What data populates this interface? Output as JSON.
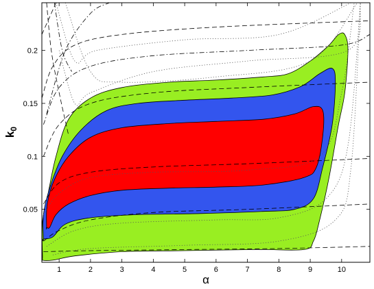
{
  "chart_data": {
    "type": "contour",
    "xlabel": "α",
    "ylabel_main": "k",
    "ylabel_sub": "0",
    "xlim": [
      0.45,
      10.9
    ],
    "ylim": [
      0.0,
      0.245
    ],
    "xticks": [
      1,
      2,
      3,
      4,
      5,
      6,
      7,
      8,
      9,
      10
    ],
    "yticks": [
      0.05,
      0.1,
      0.15,
      0.2
    ],
    "ytick_labels": [
      "0.05",
      "0.1",
      "0.15",
      "0.2"
    ],
    "regions": [
      {
        "level": "outer",
        "color": "#99ee22",
        "points": [
          [
            0.47,
            0.005
          ],
          [
            0.47,
            0.038
          ],
          [
            0.65,
            0.065
          ],
          [
            0.9,
            0.1
          ],
          [
            1.3,
            0.135
          ],
          [
            2.0,
            0.155
          ],
          [
            3.0,
            0.165
          ],
          [
            4.5,
            0.17
          ],
          [
            6.0,
            0.172
          ],
          [
            7.5,
            0.175
          ],
          [
            8.3,
            0.178
          ],
          [
            9.0,
            0.19
          ],
          [
            9.6,
            0.205
          ],
          [
            9.9,
            0.215
          ],
          [
            10.1,
            0.215
          ],
          [
            10.2,
            0.2
          ],
          [
            10.1,
            0.16
          ],
          [
            9.9,
            0.13
          ],
          [
            9.6,
            0.08
          ],
          [
            9.3,
            0.04
          ],
          [
            9.1,
            0.02
          ],
          [
            8.8,
            0.012
          ],
          [
            7.3,
            0.012
          ],
          [
            5.0,
            0.011
          ],
          [
            3.0,
            0.01
          ],
          [
            1.5,
            0.006
          ],
          [
            0.8,
            0.002
          ],
          [
            0.47,
            0.002
          ]
        ]
      },
      {
        "level": "middle",
        "color": "#3355ee",
        "points": [
          [
            0.5,
            0.022
          ],
          [
            0.5,
            0.045
          ],
          [
            0.7,
            0.07
          ],
          [
            1.1,
            0.1
          ],
          [
            1.7,
            0.125
          ],
          [
            2.5,
            0.143
          ],
          [
            3.5,
            0.15
          ],
          [
            5.0,
            0.153
          ],
          [
            6.5,
            0.155
          ],
          [
            7.8,
            0.158
          ],
          [
            8.7,
            0.166
          ],
          [
            9.3,
            0.178
          ],
          [
            9.7,
            0.183
          ],
          [
            9.8,
            0.17
          ],
          [
            9.7,
            0.13
          ],
          [
            9.4,
            0.09
          ],
          [
            9.1,
            0.06
          ],
          [
            8.5,
            0.05
          ],
          [
            7.5,
            0.048
          ],
          [
            5.5,
            0.046
          ],
          [
            3.5,
            0.045
          ],
          [
            2.0,
            0.042
          ],
          [
            1.2,
            0.036
          ],
          [
            0.8,
            0.024
          ],
          [
            0.5,
            0.022
          ]
        ]
      },
      {
        "level": "inner",
        "color": "#ff0000",
        "points": [
          [
            0.6,
            0.033
          ],
          [
            0.62,
            0.055
          ],
          [
            0.85,
            0.078
          ],
          [
            1.3,
            0.1
          ],
          [
            2.0,
            0.118
          ],
          [
            3.0,
            0.127
          ],
          [
            4.5,
            0.131
          ],
          [
            6.0,
            0.133
          ],
          [
            7.5,
            0.135
          ],
          [
            8.5,
            0.14
          ],
          [
            9.1,
            0.147
          ],
          [
            9.4,
            0.143
          ],
          [
            9.4,
            0.12
          ],
          [
            9.2,
            0.09
          ],
          [
            8.8,
            0.08
          ],
          [
            7.5,
            0.073
          ],
          [
            6.0,
            0.071
          ],
          [
            4.5,
            0.07
          ],
          [
            3.0,
            0.068
          ],
          [
            2.0,
            0.063
          ],
          [
            1.3,
            0.055
          ],
          [
            0.9,
            0.045
          ],
          [
            0.7,
            0.033
          ],
          [
            0.6,
            0.033
          ]
        ]
      }
    ],
    "reference_lines": [
      {
        "style": "dashed",
        "points": [
          [
            0.5,
            0.01
          ],
          [
            2,
            0.011
          ],
          [
            5,
            0.012
          ],
          [
            8,
            0.013
          ],
          [
            10.9,
            0.015
          ]
        ]
      },
      {
        "style": "dashed",
        "points": [
          [
            0.5,
            0.02
          ],
          [
            1,
            0.03
          ],
          [
            2,
            0.04
          ],
          [
            4,
            0.047
          ],
          [
            7,
            0.05
          ],
          [
            10.9,
            0.055
          ]
        ]
      },
      {
        "style": "dashed",
        "points": [
          [
            0.5,
            0.055
          ],
          [
            1,
            0.075
          ],
          [
            2,
            0.085
          ],
          [
            4,
            0.09
          ],
          [
            7,
            0.093
          ],
          [
            10.9,
            0.098
          ]
        ]
      },
      {
        "style": "dashed",
        "points": [
          [
            0.5,
            0.1
          ],
          [
            1,
            0.13
          ],
          [
            2,
            0.15
          ],
          [
            4,
            0.16
          ],
          [
            7,
            0.165
          ],
          [
            10.9,
            0.17
          ]
        ]
      },
      {
        "style": "dashed",
        "points": [
          [
            0.45,
            0.155
          ],
          [
            0.8,
            0.185
          ],
          [
            1.5,
            0.205
          ],
          [
            3,
            0.215
          ],
          [
            6,
            0.222
          ],
          [
            10.9,
            0.228
          ]
        ]
      },
      {
        "style": "dashed",
        "points": [
          [
            0.6,
            0.245
          ],
          [
            0.75,
            0.2
          ],
          [
            1.0,
            0.16
          ],
          [
            1.3,
            0.12
          ]
        ]
      },
      {
        "style": "dashed",
        "points": [
          [
            0.45,
            0.215
          ],
          [
            0.9,
            0.245
          ]
        ]
      },
      {
        "style": "dashdot",
        "points": [
          [
            0.5,
            0.13
          ],
          [
            1,
            0.165
          ],
          [
            2,
            0.185
          ],
          [
            4,
            0.195
          ],
          [
            7,
            0.2
          ],
          [
            10,
            0.205
          ],
          [
            10.9,
            0.215
          ]
        ]
      },
      {
        "style": "dashdot",
        "points": [
          [
            0.6,
            0.14
          ],
          [
            1.2,
            0.2
          ],
          [
            2,
            0.235
          ],
          [
            2.6,
            0.245
          ]
        ]
      },
      {
        "style": "dashdot",
        "points": [
          [
            0.85,
            0.245
          ],
          [
            1.1,
            0.2
          ],
          [
            1.4,
            0.18
          ]
        ]
      },
      {
        "style": "dotted",
        "points": [
          [
            1.0,
            0.2
          ],
          [
            1.5,
            0.15
          ],
          [
            2.0,
            0.16
          ],
          [
            4,
            0.18
          ],
          [
            7,
            0.19
          ],
          [
            10.2,
            0.2
          ],
          [
            10.6,
            0.245
          ]
        ]
      },
      {
        "style": "dotted",
        "points": [
          [
            1.2,
            0.245
          ],
          [
            2,
            0.18
          ],
          [
            3,
            0.17
          ],
          [
            6,
            0.175
          ],
          [
            9,
            0.19
          ],
          [
            10.5,
            0.245
          ]
        ]
      },
      {
        "style": "dotted",
        "points": [
          [
            0.9,
            0.245
          ],
          [
            1.5,
            0.19
          ],
          [
            2.2,
            0.2
          ],
          [
            5,
            0.21
          ],
          [
            8,
            0.215
          ],
          [
            10.3,
            0.245
          ]
        ]
      },
      {
        "style": "dotted",
        "points": [
          [
            0.5,
            0.045
          ],
          [
            1,
            0.065
          ],
          [
            2,
            0.08
          ],
          [
            4,
            0.085
          ],
          [
            7,
            0.087
          ],
          [
            9.3,
            0.1
          ],
          [
            10.0,
            0.16
          ],
          [
            10.4,
            0.245
          ]
        ]
      },
      {
        "style": "dotted",
        "points": [
          [
            0.6,
            0.015
          ],
          [
            1.5,
            0.03
          ],
          [
            3,
            0.037
          ],
          [
            6,
            0.04
          ],
          [
            8,
            0.042
          ],
          [
            9.5,
            0.06
          ],
          [
            10.2,
            0.11
          ],
          [
            10.6,
            0.245
          ]
        ]
      },
      {
        "style": "dotted",
        "points": [
          [
            0.8,
            0.007
          ],
          [
            2,
            0.013
          ],
          [
            5,
            0.016
          ],
          [
            8,
            0.02
          ],
          [
            9.8,
            0.04
          ],
          [
            10.3,
            0.09
          ],
          [
            10.6,
            0.245
          ]
        ]
      }
    ]
  }
}
